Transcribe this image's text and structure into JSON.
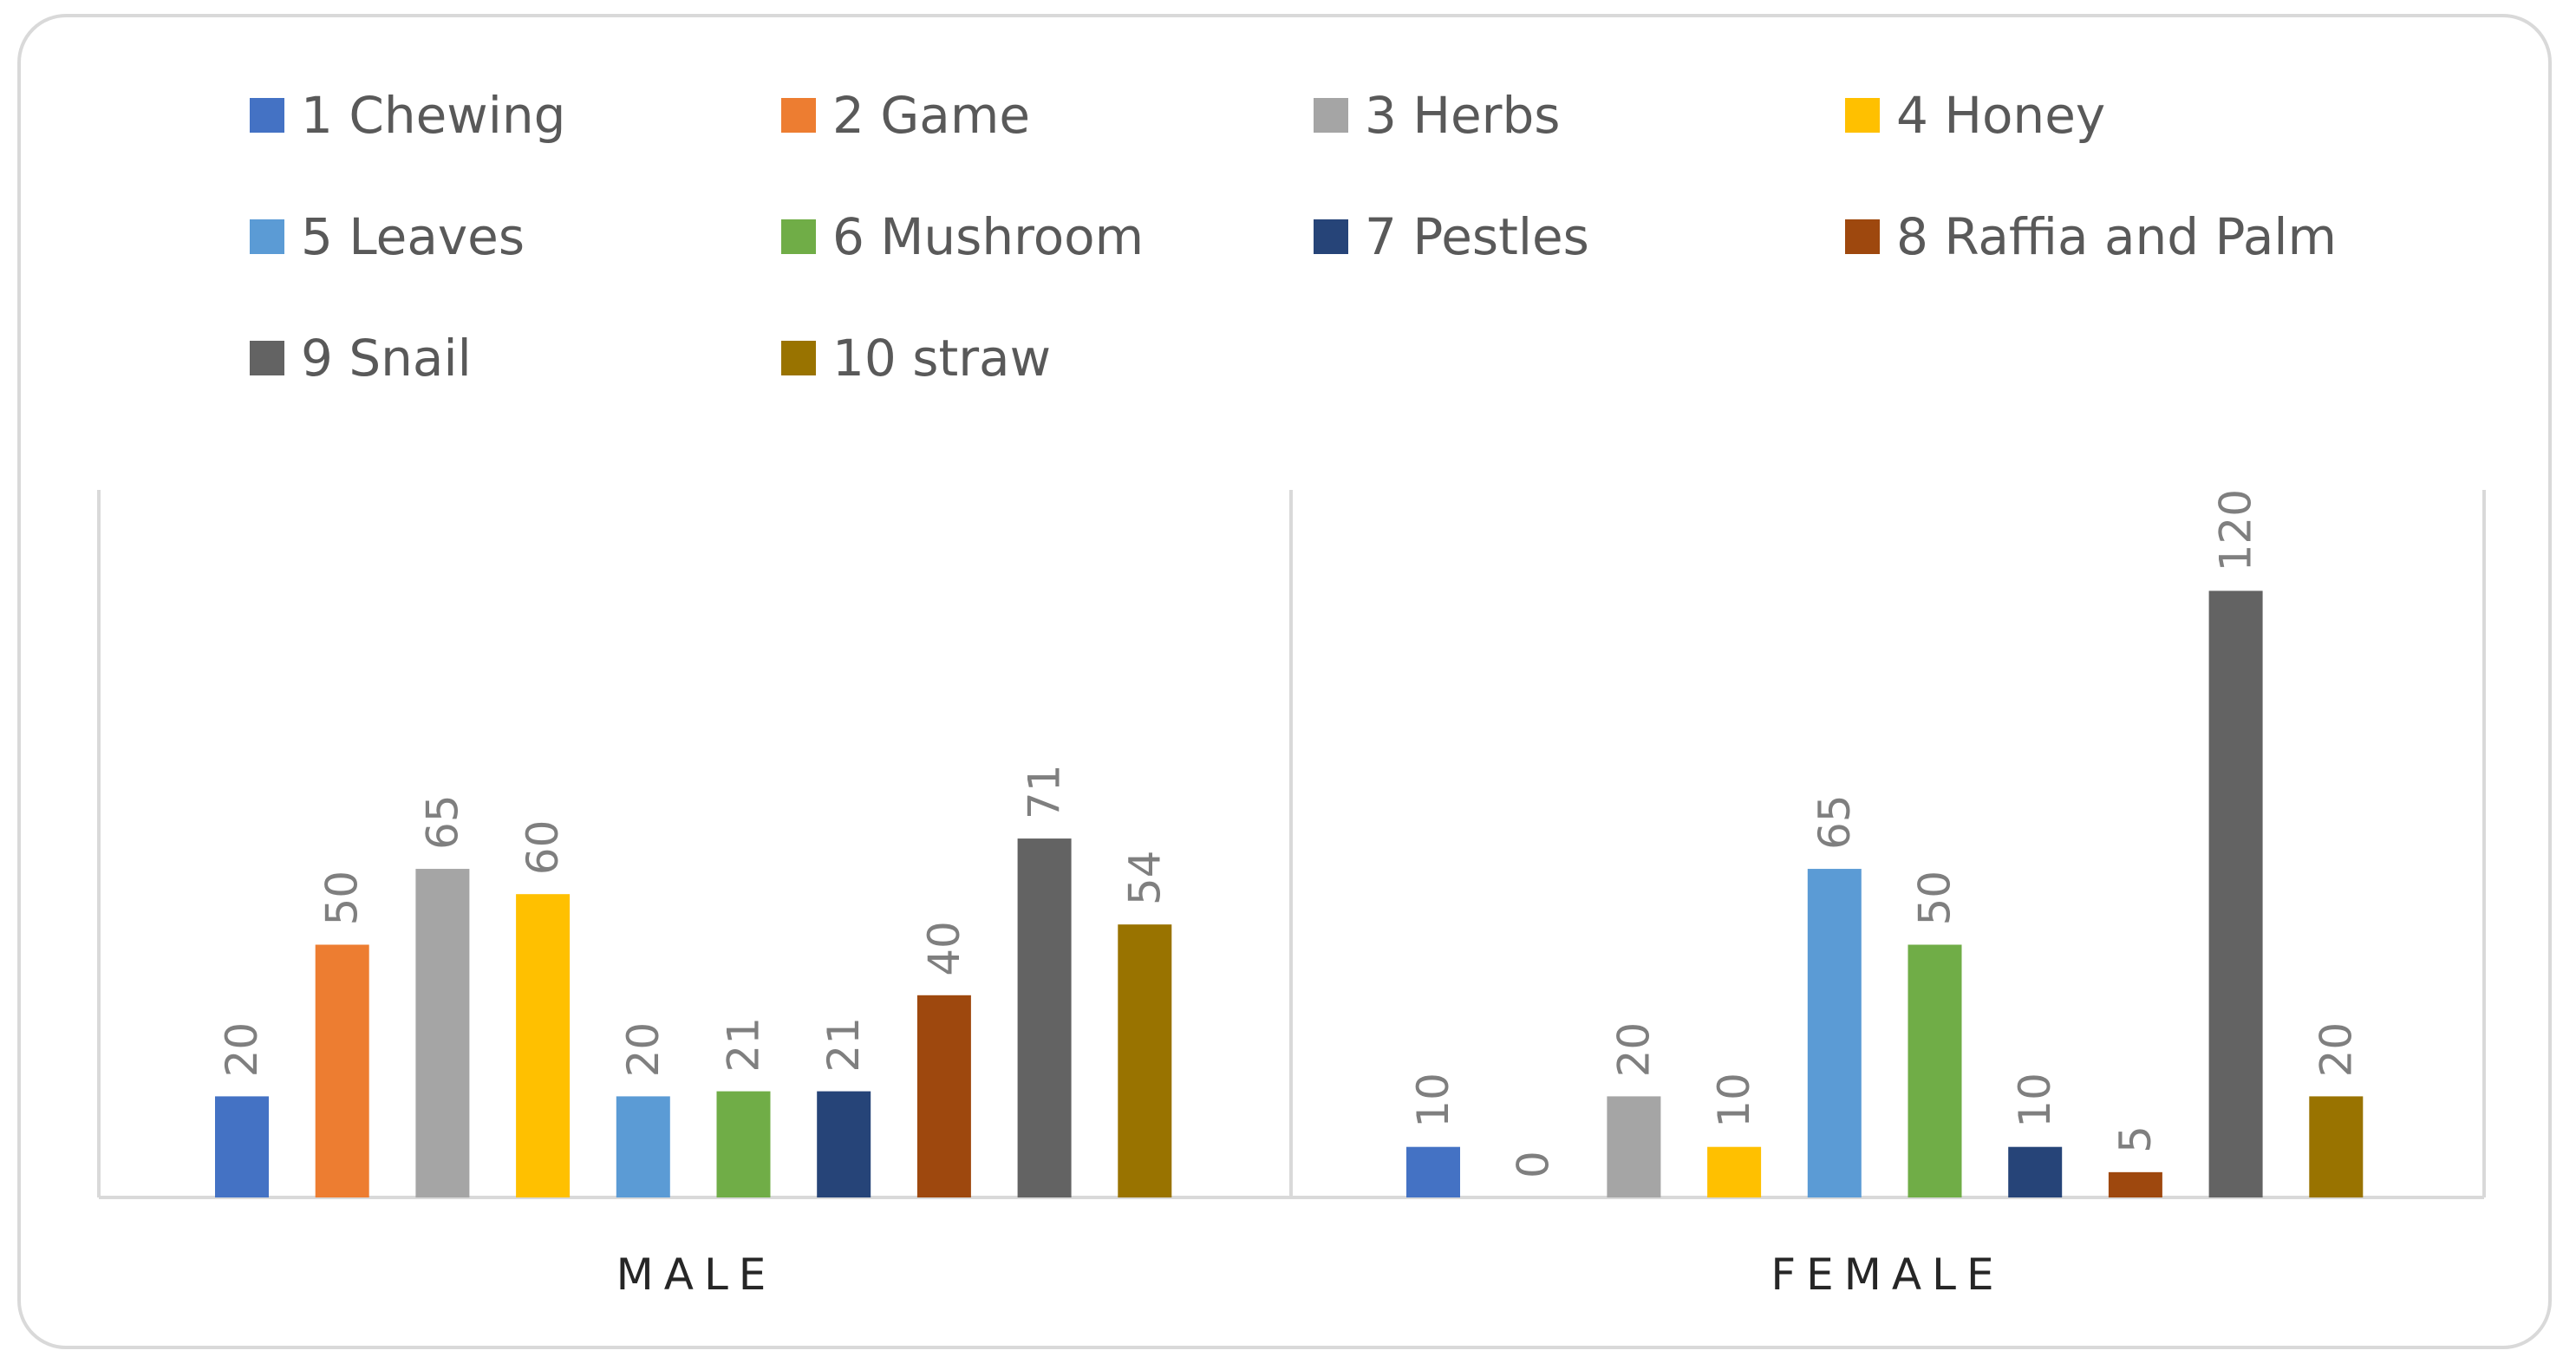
{
  "chart_data": {
    "type": "bar",
    "title": "",
    "xlabel": "",
    "ylabel": "",
    "ylim": [
      0,
      140
    ],
    "grid": false,
    "legend_position": "top",
    "categories": [
      "MALE",
      "FEMALE"
    ],
    "series": [
      {
        "name": "1 Chewing",
        "color": "#4472C4",
        "values": [
          20,
          10
        ]
      },
      {
        "name": "2 Game",
        "color": "#ED7D31",
        "values": [
          50,
          0
        ]
      },
      {
        "name": "3 Herbs",
        "color": "#A5A5A5",
        "values": [
          65,
          20
        ]
      },
      {
        "name": "4 Honey",
        "color": "#FFC000",
        "values": [
          60,
          10
        ]
      },
      {
        "name": "5 Leaves",
        "color": "#5B9BD5",
        "values": [
          20,
          65
        ]
      },
      {
        "name": "6 Mushroom",
        "color": "#70AD47",
        "values": [
          21,
          50
        ]
      },
      {
        "name": "7 Pestles",
        "color": "#264478",
        "values": [
          21,
          10
        ]
      },
      {
        "name": "8 Raffia and Palm",
        "color": "#9E480E",
        "values": [
          40,
          5
        ]
      },
      {
        "name": "9 Snail",
        "color": "#636363",
        "values": [
          71,
          120
        ]
      },
      {
        "name": "10 straw",
        "color": "#997300",
        "values": [
          54,
          20
        ]
      }
    ]
  }
}
